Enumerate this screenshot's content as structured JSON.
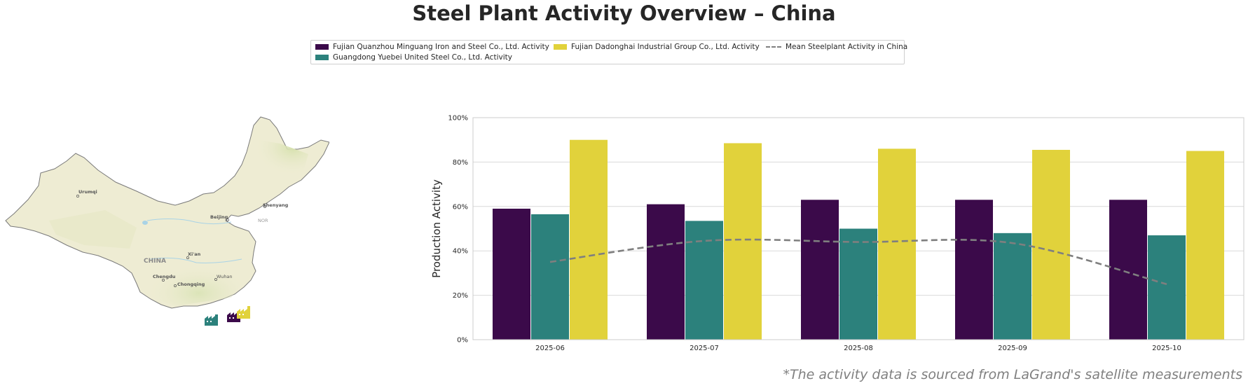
{
  "title": "Steel Plant Activity Overview – China",
  "legend": {
    "items": [
      {
        "label": "Fujian Quanzhou Minguang Iron and Steel Co., Ltd. Activity",
        "color": "#3b0a4a",
        "kind": "bar"
      },
      {
        "label": "Guangdong Yuebei United Steel Co., Ltd. Activity",
        "color": "#2c817c",
        "kind": "bar"
      },
      {
        "label": "Fujian Dadonghai Industrial Group Co., Ltd. Activity",
        "color": "#e1d23b",
        "kind": "bar"
      },
      {
        "label": "Mean Steelplant Activity in China",
        "color": "#7f7f7f",
        "kind": "line"
      }
    ]
  },
  "map": {
    "labels": {
      "urumqi": "Urumqi",
      "beijing": "Beijing",
      "shenyang": "Shenyang",
      "xian": "Xi'an",
      "china": "CHINA",
      "chengdu": "Chengdu",
      "chongqing": "Chongqing",
      "wuhan": "Wuhan",
      "nor": "NOR"
    },
    "colors": {
      "land": "#eeecd3",
      "green": "#d9e3b4",
      "border": "#7a7a7a",
      "water": "#a9d3e6"
    },
    "plant_icons": [
      "factory-icon-yuebei",
      "factory-icon-minguang",
      "factory-icon-dadonghai"
    ]
  },
  "chart_data": {
    "type": "bar",
    "categories": [
      "2025-06",
      "2025-07",
      "2025-08",
      "2025-09",
      "2025-10"
    ],
    "series": [
      {
        "name": "Fujian Quanzhou Minguang Iron and Steel Co., Ltd. Activity",
        "color": "#3b0a4a",
        "values": [
          59,
          61,
          63,
          63,
          63
        ]
      },
      {
        "name": "Guangdong Yuebei United Steel Co., Ltd. Activity",
        "color": "#2c817c",
        "values": [
          56.5,
          53.5,
          50,
          48,
          47
        ]
      },
      {
        "name": "Fujian Dadonghai Industrial Group Co., Ltd. Activity",
        "color": "#e1d23b",
        "values": [
          90,
          88.5,
          86,
          85.5,
          85
        ]
      }
    ],
    "line": {
      "name": "Mean Steelplant Activity in China",
      "color": "#7f7f7f",
      "style": "dashed",
      "values": [
        35,
        44.5,
        44,
        43.5,
        25
      ]
    },
    "ylabel": "Production Activity",
    "xlabel": "",
    "ylim": [
      0,
      100
    ],
    "yticks": [
      "0%",
      "20%",
      "40%",
      "60%",
      "80%",
      "100%"
    ],
    "ytick_values": [
      0,
      20,
      40,
      60,
      80,
      100
    ],
    "grid": "horizontal"
  },
  "footnote": "*The activity data is sourced from LaGrand's satellite measurements"
}
